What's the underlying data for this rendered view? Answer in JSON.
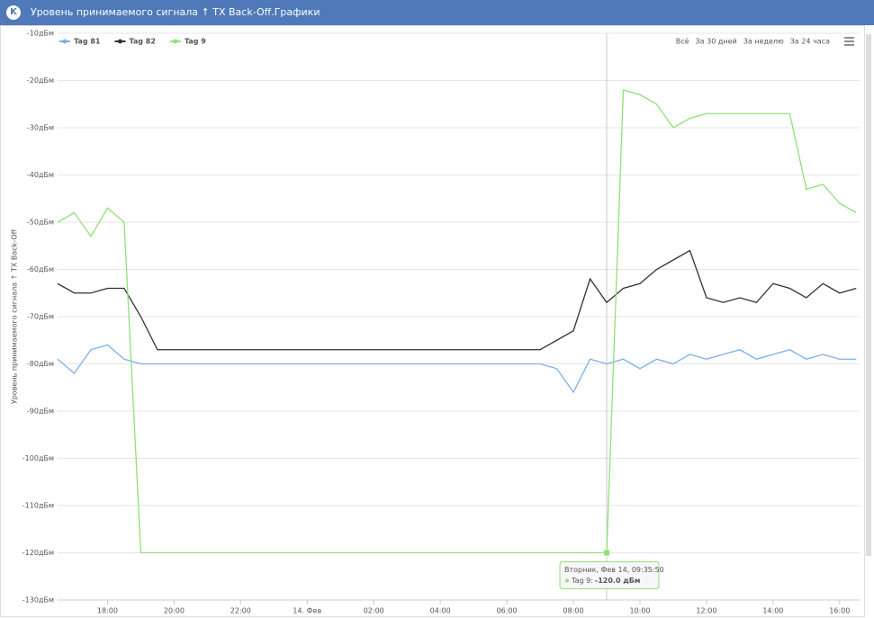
{
  "header": {
    "title": "Уровень принимаемого сигнала ↑ TX Back-Off.Графики"
  },
  "buttons": [
    "Всё",
    "За 30 дней",
    "За неделю",
    "За 24 часа"
  ],
  "chart_data": {
    "type": "line",
    "y_label": "Уровень принимаемого сигнала ↑ TX Back-Off",
    "x": [
      16.5,
      17,
      17.5,
      18,
      18.5,
      19,
      19.5,
      20,
      20.5,
      21,
      21.5,
      22,
      22.5,
      23,
      23.5,
      24,
      24.5,
      25,
      25.5,
      26,
      26.5,
      27,
      27.5,
      28,
      28.5,
      29,
      29.5,
      30,
      30.5,
      31,
      31.5,
      32,
      32.5,
      33,
      33.5,
      34,
      34.5,
      35,
      35.5,
      36,
      36.5,
      37,
      37.5,
      38,
      38.5,
      39,
      39.5,
      40,
      40.5
    ],
    "series": [
      {
        "name": "Tag 81",
        "color": "#7cb0e8",
        "values": [
          -79,
          -82,
          -77,
          -76,
          -79,
          -80,
          -80,
          -80,
          -80,
          -80,
          -80,
          -80,
          -80,
          -80,
          -80,
          -80,
          -80,
          -80,
          -80,
          -80,
          -80,
          -80,
          -80,
          -80,
          -80,
          -80,
          -80,
          -80,
          -80,
          -80,
          -81,
          -86,
          -79,
          -80,
          -79,
          -81,
          -79,
          -80,
          -78,
          -79,
          -78,
          -77,
          -79,
          -78,
          -77,
          -79,
          -78,
          -79,
          -79
        ]
      },
      {
        "name": "Tag 82",
        "color": "#333333",
        "values": [
          -63,
          -65,
          -65,
          -64,
          -64,
          -70,
          -77,
          -77,
          -77,
          -77,
          -77,
          -77,
          -77,
          -77,
          -77,
          -77,
          -77,
          -77,
          -77,
          -77,
          -77,
          -77,
          -77,
          -77,
          -77,
          -77,
          -77,
          -77,
          -77,
          -77,
          -75,
          -73,
          -62,
          -67,
          -64,
          -63,
          -60,
          -58,
          -56,
          -66,
          -67,
          -66,
          -67,
          -63,
          -64,
          -66,
          -63,
          -65,
          -64
        ]
      },
      {
        "name": "Tag 9",
        "color": "#8ee27a",
        "values": [
          -50,
          -48,
          -53,
          -47,
          -50,
          -120,
          -120,
          -120,
          -120,
          -120,
          -120,
          -120,
          -120,
          -120,
          -120,
          -120,
          -120,
          -120,
          -120,
          -120,
          -120,
          -120,
          -120,
          -120,
          -120,
          -120,
          -120,
          -120,
          -120,
          -120,
          -120,
          -120,
          -120,
          -120,
          -22,
          -23,
          -25,
          -30,
          -28,
          -27,
          -27,
          -27,
          -27,
          -27,
          -27,
          -43,
          -42,
          -46,
          -48
        ]
      }
    ],
    "xlim": [
      16.5,
      40.6
    ],
    "xticks": [
      {
        "value": 18,
        "label": "18:00"
      },
      {
        "value": 20,
        "label": "20:00"
      },
      {
        "value": 22,
        "label": "22:00"
      },
      {
        "value": 24,
        "label": "14. Фев"
      },
      {
        "value": 26,
        "label": "02:00"
      },
      {
        "value": 28,
        "label": "04:00"
      },
      {
        "value": 30,
        "label": "06:00"
      },
      {
        "value": 32,
        "label": "08:00"
      },
      {
        "value": 34,
        "label": "10:00"
      },
      {
        "value": 36,
        "label": "12:00"
      },
      {
        "value": 38,
        "label": "14:00"
      },
      {
        "value": 40,
        "label": "16:00"
      }
    ],
    "ylim": [
      -130,
      -10
    ],
    "yticks": [
      {
        "value": -10,
        "label": "-10дБм"
      },
      {
        "value": -20,
        "label": "-20дБм"
      },
      {
        "value": -30,
        "label": "-30дБм"
      },
      {
        "value": -40,
        "label": "-40дБм"
      },
      {
        "value": -50,
        "label": "-50дБм"
      },
      {
        "value": -60,
        "label": "-60дБм"
      },
      {
        "value": -70,
        "label": "-70дБм"
      },
      {
        "value": -80,
        "label": "-80дБм"
      },
      {
        "value": -90,
        "label": "-90дБм"
      },
      {
        "value": -100,
        "label": "-100дБм"
      },
      {
        "value": -110,
        "label": "-110дБм"
      },
      {
        "value": -120,
        "label": "-120дБм"
      },
      {
        "value": -130,
        "label": "-130дБм"
      }
    ],
    "grid": true,
    "legend": "top-left",
    "tooltip": {
      "title": "Вторник, Фев 14, 09:35:50",
      "series": "Tag 9:",
      "value": "-120.0 дБм"
    }
  }
}
